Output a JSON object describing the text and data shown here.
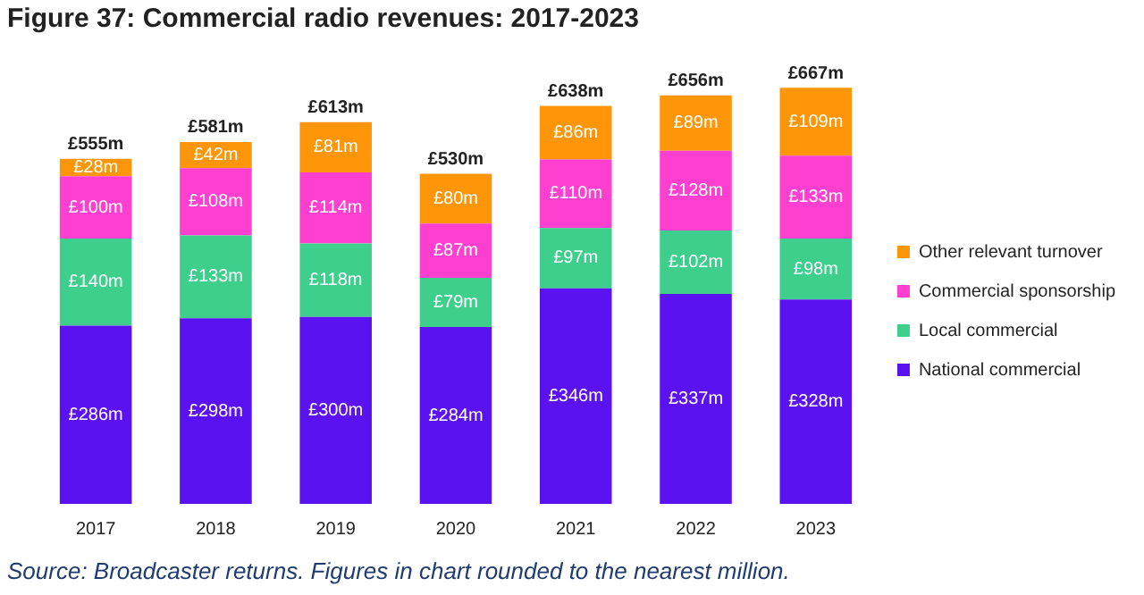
{
  "chart_data": {
    "type": "bar",
    "title": "Figure 37: Commercial radio revenues: 2017-2023",
    "annotations": [
      "Source: Broadcaster returns. Figures in chart rounded to the nearest million."
    ],
    "categories": [
      "2017",
      "2018",
      "2019",
      "2020",
      "2021",
      "2022",
      "2023"
    ],
    "stacked": true,
    "legend": "right",
    "grid": false,
    "tick_labels": "x",
    "series": [
      {
        "name": "National commercial",
        "color": "#5b12f0",
        "values": [
          286,
          298,
          300,
          284,
          346,
          337,
          328
        ],
        "value_labels": [
          "£286m",
          "£298m",
          "£300m",
          "£284m",
          "£346m",
          "£337m",
          "£328m"
        ]
      },
      {
        "name": "Local commercial",
        "color": "#3ecf8c",
        "values": [
          140,
          133,
          118,
          79,
          97,
          102,
          98
        ],
        "value_labels": [
          "£140m",
          "£133m",
          "£118m",
          "£79m",
          "£97m",
          "£102m",
          "£98m"
        ]
      },
      {
        "name": "Commercial sponsorship",
        "color": "#ff3fd0",
        "values": [
          100,
          108,
          114,
          87,
          110,
          128,
          133
        ],
        "value_labels": [
          "£100m",
          "£108m",
          "£114m",
          "£87m",
          "£110m",
          "£128m",
          "£133m"
        ]
      },
      {
        "name": "Other relevant turnover",
        "color": "#ff9508",
        "values": [
          28,
          42,
          81,
          80,
          86,
          89,
          109
        ],
        "value_labels": [
          "£28m",
          "£42m",
          "£81m",
          "£80m",
          "£86m",
          "£89m",
          "£109m"
        ]
      }
    ],
    "totals": [
      "£555m",
      "£581m",
      "£613m",
      "£530m",
      "£638m",
      "£656m",
      "£667m"
    ]
  }
}
